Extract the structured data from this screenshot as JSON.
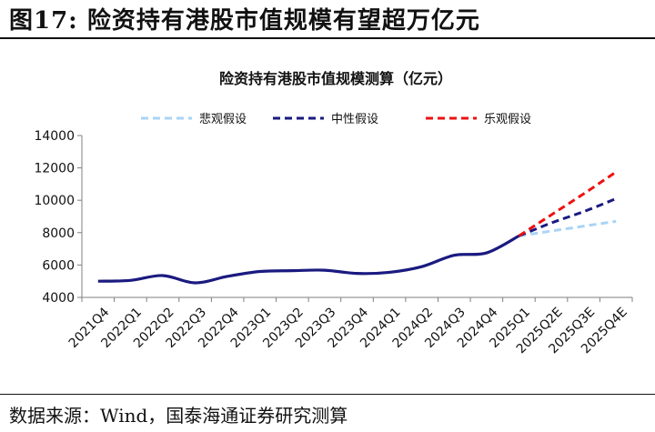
{
  "figure": {
    "title": "图17: 险资持有港股市值规模有望超万亿元",
    "source": "数据来源：Wind，国泰海通证券研究测算"
  },
  "chart_data": {
    "type": "line",
    "title": "险资持有港股市值规模测算（亿元）",
    "xlabel": "",
    "ylabel": "",
    "ylim": [
      4000,
      14000
    ],
    "yticks": [
      4000,
      6000,
      8000,
      10000,
      12000,
      14000
    ],
    "categories": [
      "2021Q4",
      "2022Q1",
      "2022Q2",
      "2022Q3",
      "2022Q4",
      "2023Q1",
      "2023Q2",
      "2023Q3",
      "2023Q4",
      "2024Q1",
      "2024Q2",
      "2024Q3",
      "2024Q4",
      "2025Q1",
      "2025Q2E",
      "2025Q3E",
      "2025Q4E"
    ],
    "grid": false,
    "legend_position": "top",
    "series": [
      {
        "name": "",
        "color": "#1a1a80",
        "style": "solid",
        "values": [
          5000,
          5050,
          5350,
          4900,
          5300,
          5600,
          5650,
          5680,
          5480,
          5550,
          5900,
          6600,
          6750,
          7800,
          null,
          null,
          null
        ]
      },
      {
        "name": "悲观假设",
        "color": "#a9d4f5",
        "style": "dashed",
        "values": [
          null,
          null,
          null,
          null,
          null,
          null,
          null,
          null,
          null,
          null,
          null,
          null,
          null,
          7800,
          8100,
          8400,
          8700
        ]
      },
      {
        "name": "中性假设",
        "color": "#1a1a80",
        "style": "dashed",
        "values": [
          null,
          null,
          null,
          null,
          null,
          null,
          null,
          null,
          null,
          null,
          null,
          null,
          null,
          7800,
          8600,
          9300,
          10100
        ]
      },
      {
        "name": "乐观假设",
        "color": "#ee1111",
        "style": "dashed",
        "values": [
          null,
          null,
          null,
          null,
          null,
          null,
          null,
          null,
          null,
          null,
          null,
          null,
          null,
          7800,
          9100,
          10400,
          11750
        ]
      }
    ]
  }
}
